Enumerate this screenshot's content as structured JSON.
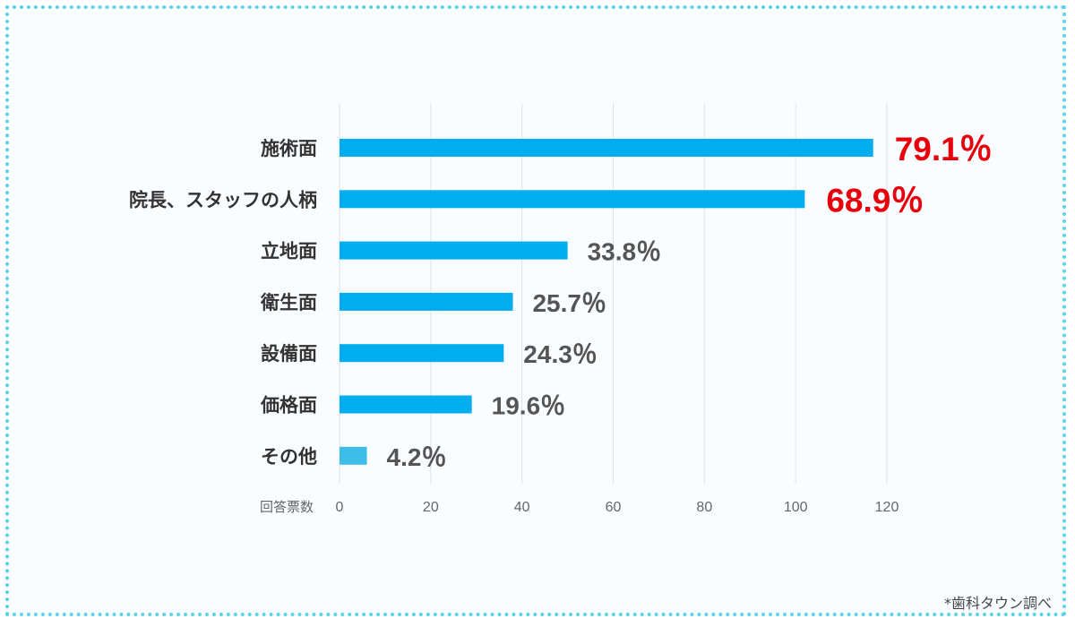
{
  "chart_data": {
    "type": "bar",
    "orientation": "horizontal",
    "categories": [
      "施術面",
      "院長、スタッフの人柄",
      "立地面",
      "衛生面",
      "設備面",
      "価格面",
      "その他"
    ],
    "values": [
      117,
      102,
      50,
      38,
      36,
      29,
      6
    ],
    "data_labels": [
      "79.1％",
      "68.9％",
      "33.8％",
      "25.7％",
      "24.3％",
      "19.6％",
      "4.2％"
    ],
    "highlight_count": 2,
    "xlabel": "回答票数",
    "xlim": [
      0,
      120
    ],
    "xticks": [
      0,
      20,
      40,
      60,
      80,
      100,
      120
    ],
    "grid": true,
    "colors": {
      "bar": "#00aeef",
      "bar_other": "#3dbde8",
      "label_highlight": "#e8000b",
      "label_normal": "#555555",
      "category_text": "#333333",
      "grid": "#dfe3e8",
      "tick_text": "#666666"
    }
  },
  "footer": {
    "source": "*歯科タウン調べ"
  }
}
